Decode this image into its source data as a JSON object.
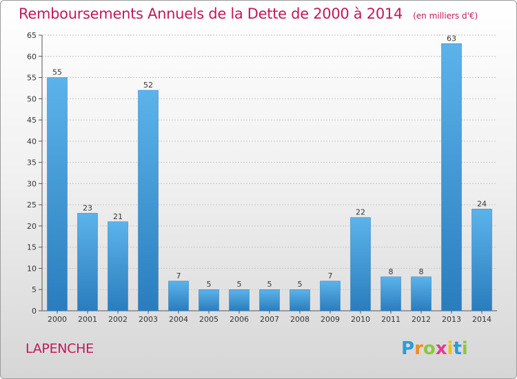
{
  "chart_data": {
    "type": "bar",
    "title": "Remboursements Annuels de la Dette de 2000 à 2014",
    "unit_note": "(en milliers d'€)",
    "categories": [
      "2000",
      "2001",
      "2002",
      "2003",
      "2004",
      "2005",
      "2006",
      "2007",
      "2008",
      "2009",
      "2010",
      "2011",
      "2012",
      "2013",
      "2014"
    ],
    "values": [
      55,
      23,
      21,
      52,
      7,
      5,
      5,
      5,
      5,
      7,
      22,
      8,
      8,
      63,
      24
    ],
    "ylim": [
      0,
      65
    ],
    "yticks": [
      0,
      5,
      10,
      15,
      20,
      25,
      30,
      35,
      40,
      45,
      50,
      55,
      60,
      65
    ],
    "grid": true,
    "bar_color": "#4a9fdc",
    "title_color": "#c2185b"
  },
  "commune": "LAPENCHE",
  "logo": {
    "letters": [
      "P",
      "r",
      "o",
      "x",
      "i",
      "t",
      "i"
    ],
    "colors": [
      "#2e9bd6",
      "#f28c1e",
      "#8dc63f",
      "#e6398f",
      "#f2c100",
      "#2e9bd6",
      "#8dc63f"
    ]
  }
}
